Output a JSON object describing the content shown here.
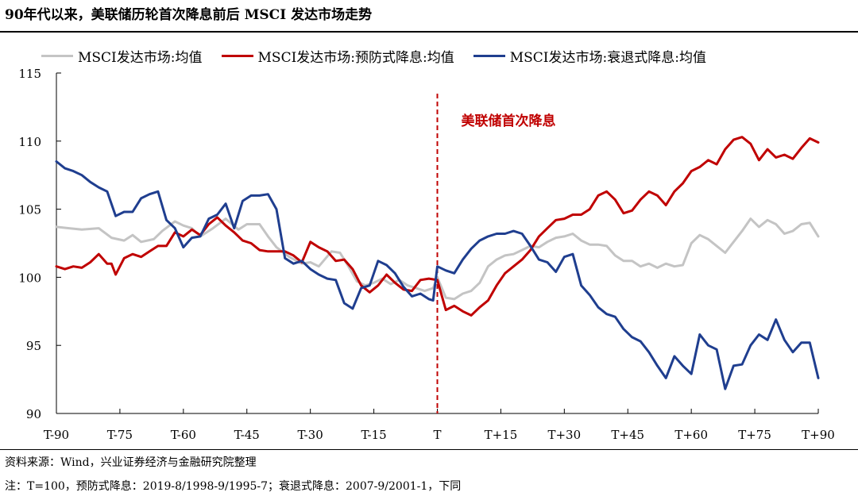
{
  "title": "90年代以来，美联储历轮首次降息前后 MSCI 发达市场走势",
  "source": "资料来源：Wind，兴业证券经济与金融研究院整理",
  "note": "注：T=100，预防式降息：2019-8/1998-9/1995-7；衰退式降息：2007-9/2001-1，下同",
  "colors": {
    "gray": "#c4c4c4",
    "red": "#c00000",
    "blue": "#1f3e8f",
    "annotation": "#c00000"
  },
  "chart_data": {
    "type": "line",
    "title": "90年代以来，美联储历轮首次降息前后 MSCI 发达市场走势",
    "xlabel": "",
    "ylabel": "",
    "xlim": [
      -90,
      90
    ],
    "ylim": [
      90,
      115
    ],
    "xticks": [
      -90,
      -75,
      -60,
      -45,
      -30,
      -15,
      0,
      15,
      30,
      45,
      60,
      75,
      90
    ],
    "xtick_labels": [
      "T-90",
      "T-75",
      "T-60",
      "T-45",
      "T-30",
      "T-15",
      "T",
      "T+15",
      "T+30",
      "T+45",
      "T+60",
      "T+75",
      "T+90"
    ],
    "yticks": [
      90,
      95,
      100,
      105,
      110,
      115
    ],
    "ytick_labels": [
      "90",
      "95",
      "100",
      "105",
      "110",
      "115"
    ],
    "annotation": {
      "text": "美联储首次降息",
      "x": 0
    },
    "legend_position": "top",
    "series": [
      {
        "name": "MSCI发达市场:均值",
        "color": "gray",
        "points": [
          [
            -90,
            103.7
          ],
          [
            -87,
            103.6
          ],
          [
            -84,
            103.5
          ],
          [
            -80,
            103.6
          ],
          [
            -77,
            102.9
          ],
          [
            -74,
            102.7
          ],
          [
            -72,
            103.1
          ],
          [
            -70,
            102.6
          ],
          [
            -67,
            102.8
          ],
          [
            -65,
            103.4
          ],
          [
            -62,
            104.1
          ],
          [
            -60,
            103.8
          ],
          [
            -58,
            103.6
          ],
          [
            -56,
            103.0
          ],
          [
            -53,
            103.6
          ],
          [
            -50,
            104.3
          ],
          [
            -47,
            103.5
          ],
          [
            -45,
            103.9
          ],
          [
            -42,
            103.9
          ],
          [
            -40,
            103.0
          ],
          [
            -38,
            102.2
          ],
          [
            -35,
            101.5
          ],
          [
            -32,
            101.0
          ],
          [
            -30,
            101.1
          ],
          [
            -28,
            100.8
          ],
          [
            -25,
            101.9
          ],
          [
            -23,
            101.8
          ],
          [
            -21,
            100.8
          ],
          [
            -19,
            99.7
          ],
          [
            -17,
            99.4
          ],
          [
            -15,
            99.6
          ],
          [
            -13,
            99.9
          ],
          [
            -11,
            99.5
          ],
          [
            -9,
            99.8
          ],
          [
            -7,
            99.4
          ],
          [
            -5,
            99.2
          ],
          [
            -3,
            99.0
          ],
          [
            -1,
            99.2
          ],
          [
            0,
            100.0
          ],
          [
            2,
            98.5
          ],
          [
            4,
            98.4
          ],
          [
            6,
            98.8
          ],
          [
            8,
            99.0
          ],
          [
            10,
            99.6
          ],
          [
            12,
            100.8
          ],
          [
            14,
            101.3
          ],
          [
            16,
            101.6
          ],
          [
            18,
            101.7
          ],
          [
            20,
            102.0
          ],
          [
            22,
            102.3
          ],
          [
            24,
            102.2
          ],
          [
            26,
            102.6
          ],
          [
            28,
            102.9
          ],
          [
            30,
            103.0
          ],
          [
            32,
            103.2
          ],
          [
            34,
            102.7
          ],
          [
            36,
            102.4
          ],
          [
            38,
            102.4
          ],
          [
            40,
            102.3
          ],
          [
            42,
            101.6
          ],
          [
            44,
            101.2
          ],
          [
            46,
            101.2
          ],
          [
            48,
            100.8
          ],
          [
            50,
            101.0
          ],
          [
            52,
            100.7
          ],
          [
            54,
            101.0
          ],
          [
            56,
            100.8
          ],
          [
            58,
            100.9
          ],
          [
            60,
            102.5
          ],
          [
            62,
            103.1
          ],
          [
            64,
            102.8
          ],
          [
            66,
            102.3
          ],
          [
            68,
            101.8
          ],
          [
            70,
            102.6
          ],
          [
            72,
            103.4
          ],
          [
            74,
            104.3
          ],
          [
            76,
            103.7
          ],
          [
            78,
            104.2
          ],
          [
            80,
            103.9
          ],
          [
            82,
            103.2
          ],
          [
            84,
            103.4
          ],
          [
            86,
            103.9
          ],
          [
            88,
            104.0
          ],
          [
            90,
            103.0
          ]
        ]
      },
      {
        "name": "MSCI发达市场:预防式降息:均值",
        "color": "red",
        "points": [
          [
            -90,
            100.8
          ],
          [
            -88,
            100.6
          ],
          [
            -86,
            100.8
          ],
          [
            -84,
            100.7
          ],
          [
            -82,
            101.1
          ],
          [
            -80,
            101.7
          ],
          [
            -78,
            101.0
          ],
          [
            -77,
            101.0
          ],
          [
            -76,
            100.2
          ],
          [
            -74,
            101.4
          ],
          [
            -72,
            101.7
          ],
          [
            -70,
            101.5
          ],
          [
            -68,
            101.9
          ],
          [
            -66,
            102.3
          ],
          [
            -64,
            102.3
          ],
          [
            -62,
            103.3
          ],
          [
            -60,
            103.0
          ],
          [
            -58,
            103.5
          ],
          [
            -56,
            103.1
          ],
          [
            -54,
            103.9
          ],
          [
            -52,
            104.4
          ],
          [
            -50,
            103.8
          ],
          [
            -48,
            103.3
          ],
          [
            -46,
            102.7
          ],
          [
            -44,
            102.5
          ],
          [
            -42,
            102.0
          ],
          [
            -40,
            101.9
          ],
          [
            -38,
            101.9
          ],
          [
            -36,
            101.9
          ],
          [
            -34,
            101.6
          ],
          [
            -32,
            101.1
          ],
          [
            -30,
            102.6
          ],
          [
            -28,
            102.2
          ],
          [
            -26,
            101.9
          ],
          [
            -24,
            101.2
          ],
          [
            -22,
            101.3
          ],
          [
            -20,
            100.6
          ],
          [
            -18,
            99.4
          ],
          [
            -16,
            98.9
          ],
          [
            -14,
            99.4
          ],
          [
            -12,
            100.2
          ],
          [
            -10,
            99.6
          ],
          [
            -8,
            99.1
          ],
          [
            -6,
            99.0
          ],
          [
            -4,
            99.8
          ],
          [
            -2,
            99.9
          ],
          [
            0,
            99.8
          ],
          [
            2,
            97.6
          ],
          [
            4,
            97.9
          ],
          [
            6,
            97.5
          ],
          [
            8,
            97.2
          ],
          [
            10,
            97.8
          ],
          [
            12,
            98.3
          ],
          [
            14,
            99.4
          ],
          [
            16,
            100.3
          ],
          [
            18,
            100.8
          ],
          [
            20,
            101.3
          ],
          [
            22,
            102.0
          ],
          [
            24,
            103.0
          ],
          [
            26,
            103.6
          ],
          [
            28,
            104.2
          ],
          [
            30,
            104.3
          ],
          [
            32,
            104.6
          ],
          [
            34,
            104.6
          ],
          [
            36,
            105.0
          ],
          [
            38,
            106.0
          ],
          [
            40,
            106.3
          ],
          [
            42,
            105.7
          ],
          [
            44,
            104.7
          ],
          [
            46,
            104.9
          ],
          [
            48,
            105.7
          ],
          [
            50,
            106.3
          ],
          [
            52,
            106.0
          ],
          [
            54,
            105.3
          ],
          [
            56,
            106.3
          ],
          [
            58,
            106.9
          ],
          [
            60,
            107.8
          ],
          [
            62,
            108.1
          ],
          [
            64,
            108.6
          ],
          [
            66,
            108.3
          ],
          [
            68,
            109.4
          ],
          [
            70,
            110.1
          ],
          [
            72,
            110.3
          ],
          [
            74,
            109.8
          ],
          [
            76,
            108.6
          ],
          [
            78,
            109.4
          ],
          [
            80,
            108.8
          ],
          [
            82,
            109.0
          ],
          [
            84,
            108.7
          ],
          [
            86,
            109.5
          ],
          [
            88,
            110.2
          ],
          [
            90,
            109.9
          ]
        ]
      },
      {
        "name": "MSCI发达市场:衰退式降息:均值",
        "color": "blue",
        "points": [
          [
            -90,
            108.5
          ],
          [
            -88,
            108.0
          ],
          [
            -86,
            107.8
          ],
          [
            -84,
            107.5
          ],
          [
            -82,
            107.0
          ],
          [
            -80,
            106.6
          ],
          [
            -78,
            106.3
          ],
          [
            -76,
            104.5
          ],
          [
            -74,
            104.8
          ],
          [
            -72,
            104.8
          ],
          [
            -70,
            105.8
          ],
          [
            -68,
            106.1
          ],
          [
            -66,
            106.3
          ],
          [
            -64,
            104.2
          ],
          [
            -62,
            103.6
          ],
          [
            -60,
            102.2
          ],
          [
            -58,
            102.9
          ],
          [
            -56,
            103.0
          ],
          [
            -54,
            104.3
          ],
          [
            -52,
            104.6
          ],
          [
            -50,
            105.4
          ],
          [
            -48,
            103.6
          ],
          [
            -46,
            105.6
          ],
          [
            -44,
            106.0
          ],
          [
            -42,
            106.0
          ],
          [
            -40,
            106.1
          ],
          [
            -38,
            105.0
          ],
          [
            -36,
            101.4
          ],
          [
            -34,
            101.0
          ],
          [
            -32,
            101.2
          ],
          [
            -30,
            100.6
          ],
          [
            -28,
            100.2
          ],
          [
            -26,
            99.9
          ],
          [
            -24,
            99.8
          ],
          [
            -22,
            98.1
          ],
          [
            -20,
            97.7
          ],
          [
            -18,
            99.2
          ],
          [
            -16,
            99.4
          ],
          [
            -14,
            101.2
          ],
          [
            -12,
            100.9
          ],
          [
            -10,
            100.3
          ],
          [
            -8,
            99.3
          ],
          [
            -6,
            98.6
          ],
          [
            -4,
            98.8
          ],
          [
            -2,
            98.4
          ],
          [
            -1,
            98.3
          ],
          [
            0,
            100.8
          ],
          [
            2,
            100.5
          ],
          [
            4,
            100.3
          ],
          [
            6,
            101.3
          ],
          [
            8,
            102.1
          ],
          [
            10,
            102.7
          ],
          [
            12,
            103.0
          ],
          [
            14,
            103.2
          ],
          [
            16,
            103.2
          ],
          [
            18,
            103.4
          ],
          [
            20,
            103.2
          ],
          [
            22,
            102.3
          ],
          [
            24,
            101.3
          ],
          [
            26,
            101.1
          ],
          [
            28,
            100.4
          ],
          [
            30,
            101.5
          ],
          [
            32,
            101.7
          ],
          [
            34,
            99.4
          ],
          [
            36,
            98.7
          ],
          [
            38,
            97.8
          ],
          [
            40,
            97.3
          ],
          [
            42,
            97.1
          ],
          [
            44,
            96.2
          ],
          [
            46,
            95.6
          ],
          [
            48,
            95.3
          ],
          [
            50,
            94.5
          ],
          [
            52,
            93.5
          ],
          [
            54,
            92.6
          ],
          [
            56,
            94.2
          ],
          [
            58,
            93.5
          ],
          [
            60,
            92.9
          ],
          [
            62,
            95.8
          ],
          [
            64,
            95.0
          ],
          [
            66,
            94.7
          ],
          [
            68,
            91.8
          ],
          [
            70,
            93.5
          ],
          [
            72,
            93.6
          ],
          [
            74,
            95.0
          ],
          [
            76,
            95.8
          ],
          [
            78,
            95.4
          ],
          [
            80,
            96.9
          ],
          [
            82,
            95.4
          ],
          [
            84,
            94.5
          ],
          [
            86,
            95.2
          ],
          [
            88,
            95.2
          ],
          [
            90,
            92.6
          ]
        ]
      }
    ]
  }
}
